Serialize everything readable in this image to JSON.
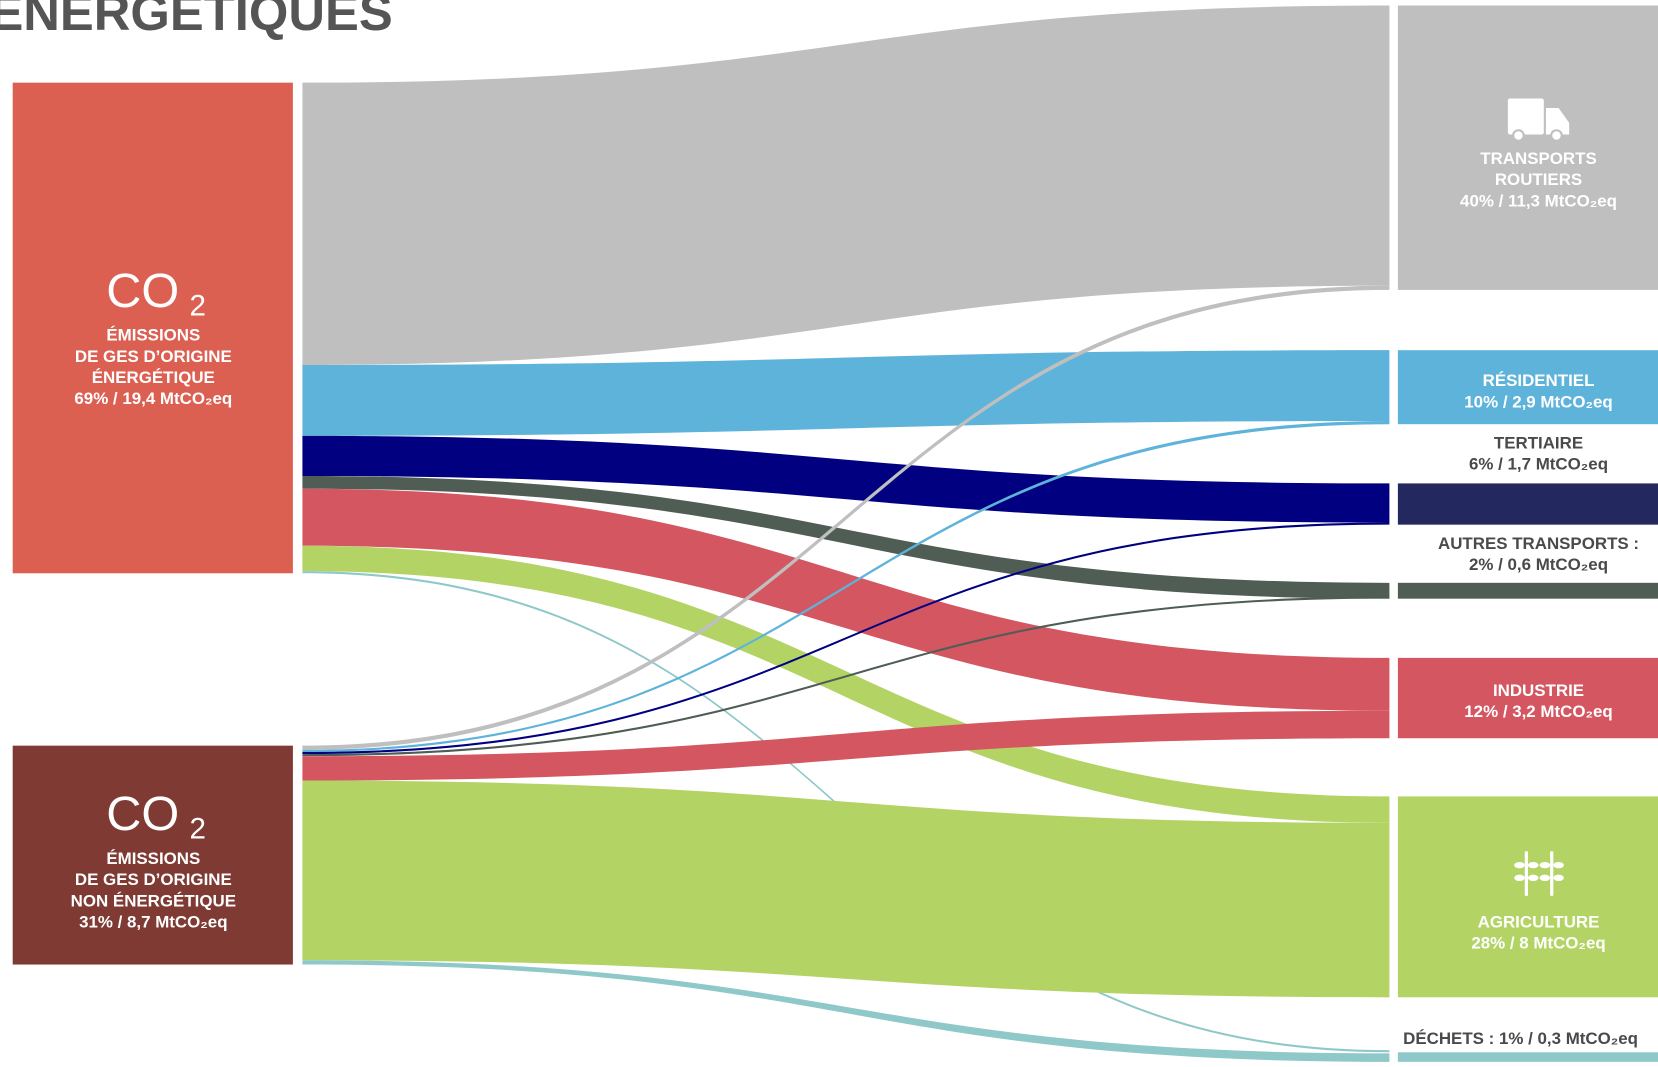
{
  "title": "ÉNERGÉTIQUES",
  "sources": [
    {
      "symbol": "CO",
      "subscript": "2",
      "lines": [
        "ÉMISSIONS",
        "DE GES D’ORIGINE",
        "ÉNERGÉTIQUE",
        "69% / 19,4 MtCO₂eq"
      ]
    },
    {
      "symbol": "CO",
      "subscript": "2",
      "lines": [
        "ÉMISSIONS",
        "DE GES D’ORIGINE",
        "NON ÉNERGÉTIQUE",
        "31% / 8,7 MtCO₂eq"
      ]
    }
  ],
  "sectors": [
    {
      "lines": [
        "TRANSPORTS",
        "ROUTIERS",
        "40% / 11,3 MtCO₂eq"
      ]
    },
    {
      "lines": [
        "RÉSIDENTIEL",
        "10% / 2,9 MtCO₂eq"
      ]
    },
    {
      "lines": [
        "TERTIAIRE",
        "6% / 1,7 MtCO₂eq"
      ]
    },
    {
      "lines": [
        "AUTRES TRANSPORTS :",
        "2% / 0,6 MtCO₂eq"
      ]
    },
    {
      "lines": [
        "INDUSTRIE",
        "12% / 3,2 MtCO₂eq"
      ]
    },
    {
      "lines": [
        "AGRICULTURE",
        "28% / 8 MtCO₂eq"
      ]
    },
    {
      "lines": [
        "DÉCHETS : 1% / 0,3 MtCO₂eq"
      ]
    }
  ]
}
